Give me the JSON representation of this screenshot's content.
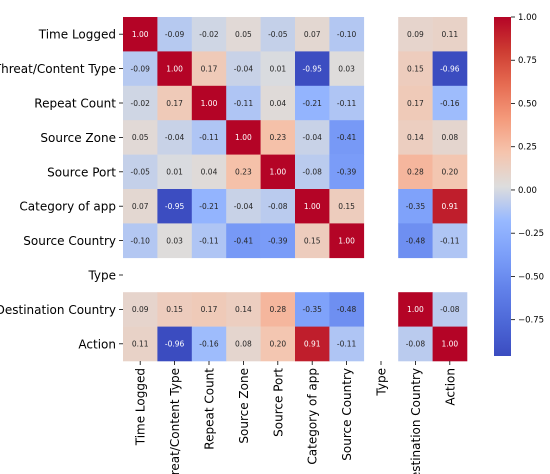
{
  "chart_data": {
    "type": "heatmap",
    "title": "",
    "xlabel": "",
    "ylabel": "",
    "variables": [
      "Time Logged",
      "Threat/Content Type",
      "Repeat Count",
      "Source Zone",
      "Source Port",
      "Category of app",
      "Source Country",
      "Type",
      "Destination Country",
      "Action"
    ],
    "matrix": [
      [
        1.0,
        -0.09,
        -0.02,
        0.05,
        -0.05,
        0.07,
        -0.1,
        null,
        0.09,
        0.11
      ],
      [
        -0.09,
        1.0,
        0.17,
        -0.04,
        0.01,
        -0.95,
        0.03,
        null,
        0.15,
        -0.96
      ],
      [
        -0.02,
        0.17,
        1.0,
        -0.11,
        0.04,
        -0.21,
        -0.11,
        null,
        0.17,
        -0.16
      ],
      [
        0.05,
        -0.04,
        -0.11,
        1.0,
        0.23,
        -0.04,
        -0.41,
        null,
        0.14,
        0.08
      ],
      [
        -0.05,
        0.01,
        0.04,
        0.23,
        1.0,
        -0.08,
        -0.39,
        null,
        0.28,
        0.2
      ],
      [
        0.07,
        -0.95,
        -0.21,
        -0.04,
        -0.08,
        1.0,
        0.15,
        null,
        -0.35,
        0.91
      ],
      [
        -0.1,
        0.03,
        -0.11,
        -0.41,
        -0.39,
        0.15,
        1.0,
        null,
        -0.48,
        -0.11
      ],
      [
        null,
        null,
        null,
        null,
        null,
        null,
        null,
        null,
        null,
        null
      ],
      [
        0.09,
        0.15,
        0.17,
        0.14,
        0.28,
        -0.35,
        -0.48,
        null,
        1.0,
        -0.08
      ],
      [
        0.11,
        -0.96,
        -0.16,
        0.08,
        0.2,
        0.91,
        -0.11,
        null,
        -0.08,
        1.0
      ]
    ],
    "colorbar": {
      "range": [
        -0.96,
        1.0
      ],
      "ticks": [
        1.0,
        0.75,
        0.5,
        0.25,
        0.0,
        -0.25,
        -0.5,
        -0.75
      ],
      "tick_labels": [
        "1.00",
        "0.75",
        "0.50",
        "0.25",
        "0.00",
        "−0.25",
        "−0.50",
        "−0.75"
      ],
      "colormap": "coolwarm"
    },
    "grid": false,
    "legend": "colorbar-right"
  }
}
